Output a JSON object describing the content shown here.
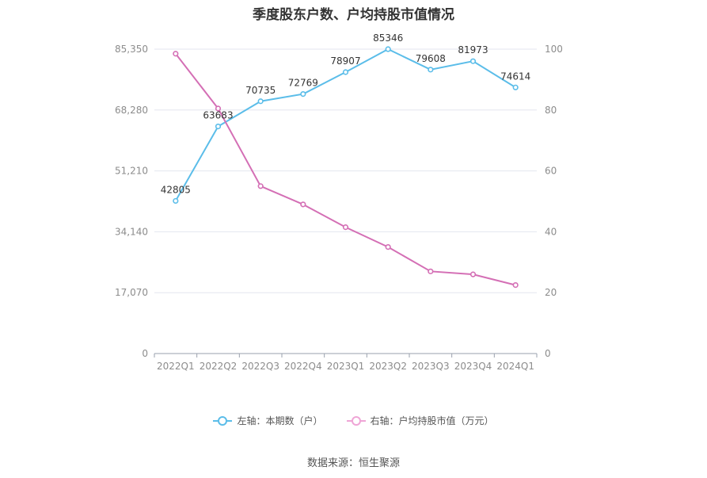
{
  "title": "季度股东户数、户均持股市值情况",
  "source": "数据来源：恒生聚源",
  "chart_data": {
    "type": "line",
    "categories": [
      "2022Q1",
      "2022Q2",
      "2022Q3",
      "2022Q4",
      "2023Q1",
      "2023Q2",
      "2023Q3",
      "2023Q4",
      "2024Q1"
    ],
    "series": [
      {
        "name": "左轴：本期数（户）",
        "axis": "left",
        "color": "#5bbde9",
        "values": [
          42805,
          63683,
          70735,
          72769,
          78907,
          85346,
          79608,
          81973,
          74614
        ],
        "value_labels": [
          "42805",
          "63683",
          "70735",
          "72769",
          "78907",
          "85346",
          "79608",
          "81973",
          "74614"
        ]
      },
      {
        "name": "右轴：户均持股市值（万元）",
        "axis": "right",
        "color": "#d46fb5",
        "values": [
          98.5,
          80.5,
          55.0,
          49.0,
          41.5,
          35.0,
          27.0,
          26.0,
          22.5
        ]
      }
    ],
    "left_axis": {
      "ylim": [
        0,
        85350
      ],
      "ticks": [
        0,
        17070,
        34140,
        51210,
        68280,
        85350
      ],
      "tick_labels": [
        "0",
        "17,070",
        "34,140",
        "51,210",
        "68,280",
        "85,350"
      ]
    },
    "right_axis": {
      "ylim": [
        0,
        100
      ],
      "ticks": [
        0,
        20,
        40,
        60,
        80,
        100
      ],
      "tick_labels": [
        "0",
        "20",
        "40",
        "60",
        "80",
        "100"
      ]
    },
    "grid": true,
    "legend_position": "bottom"
  }
}
